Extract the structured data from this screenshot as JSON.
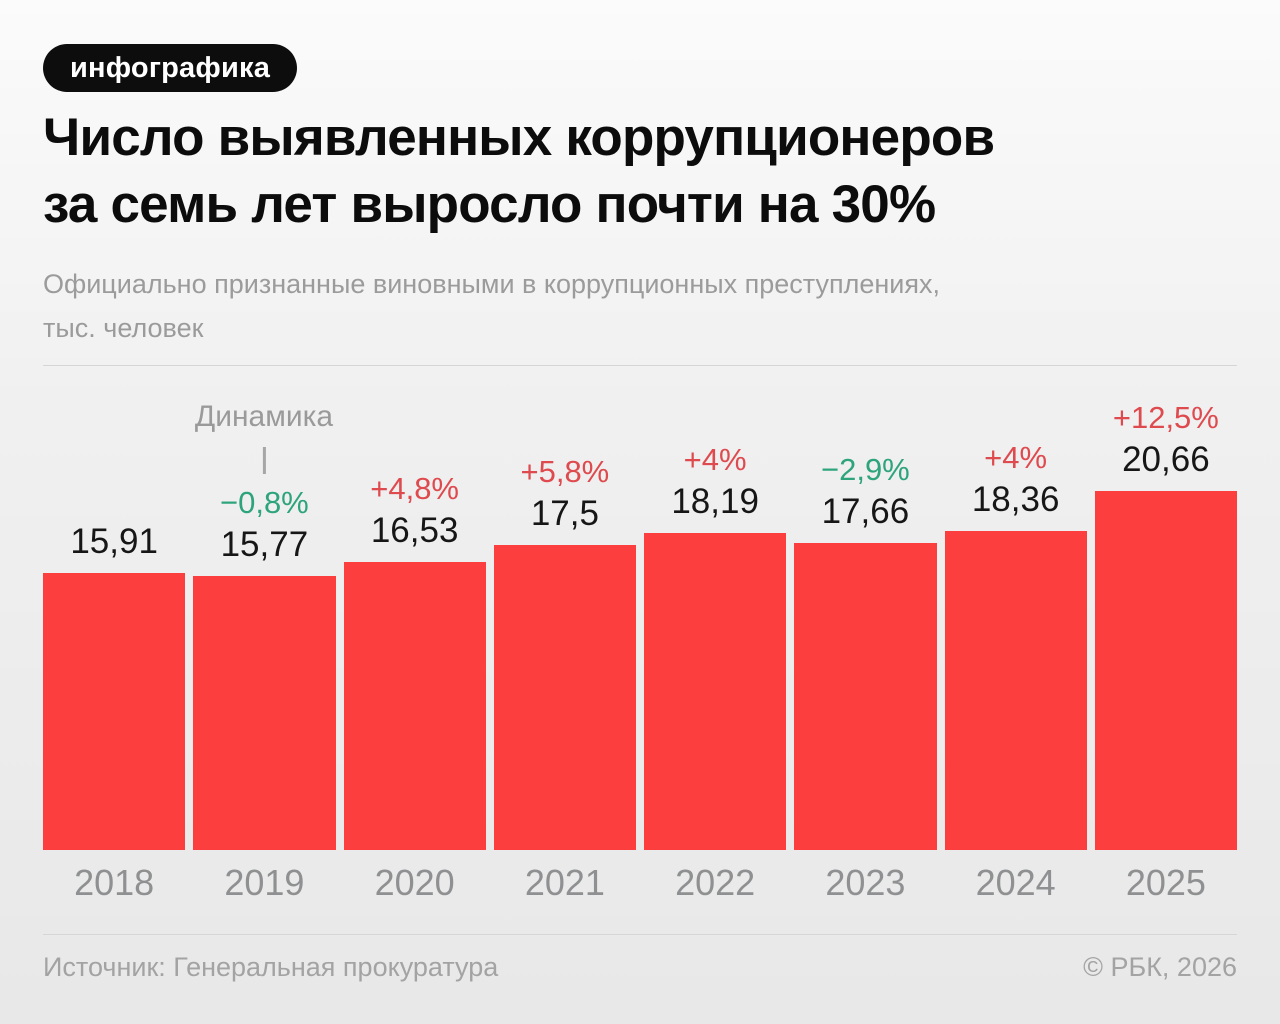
{
  "badge": {
    "label": "инфографика"
  },
  "title": {
    "line1": "Число выявленных коррупционеров",
    "line2": "за семь лет выросло почти на 30%"
  },
  "subtitle": {
    "line1": "Официально признанные виновными в коррупционных преступлениях,",
    "line2": "тыс. человек"
  },
  "chart_data": {
    "type": "bar",
    "title": "Число выявленных коррупционеров за семь лет выросло почти на 30%",
    "subtitle": "Официально признанные виновными в коррупционных преступлениях, тыс. человек",
    "categories": [
      "2018",
      "2019",
      "2020",
      "2021",
      "2022",
      "2023",
      "2024",
      "2025"
    ],
    "values": [
      15.91,
      15.77,
      16.53,
      17.5,
      18.19,
      17.66,
      18.36,
      20.66
    ],
    "value_labels": [
      "15,91",
      "15,77",
      "16,53",
      "17,5",
      "18,19",
      "17,66",
      "18,36",
      "20,66"
    ],
    "change_labels": [
      "",
      "−0,8%",
      "+4,8%",
      "+5,8%",
      "+4%",
      "−2,9%",
      "+4%",
      "+12,5%"
    ],
    "change_directions": [
      "",
      "down",
      "up",
      "up",
      "up",
      "down",
      "up",
      "up"
    ],
    "annotation_label": "Динамика",
    "annotation_target_category": "2019",
    "xlabel": "",
    "ylabel": "тыс. человек",
    "ylim": [
      0,
      27
    ],
    "grid": false,
    "legend_position": "none",
    "bar_color": "#FC3E3E",
    "increase_color": "#DE4A4E",
    "decrease_color": "#2EA47C"
  },
  "footer": {
    "source": "Источник: Генеральная прокуратура",
    "copyright": "© РБК, 2026"
  }
}
